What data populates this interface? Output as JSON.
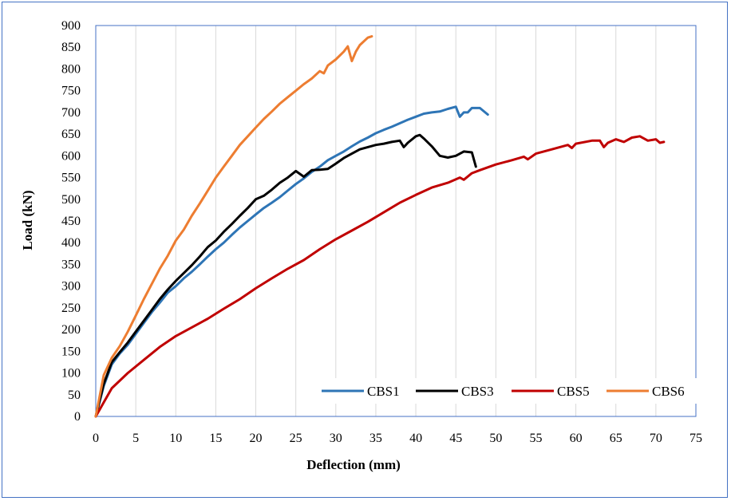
{
  "chart_data": {
    "type": "line",
    "title": "",
    "xlabel": "Deflection (mm)",
    "ylabel": "Load (kN)",
    "xlim": [
      0,
      75
    ],
    "ylim": [
      0,
      900
    ],
    "xticks": [
      0,
      5,
      10,
      15,
      20,
      25,
      30,
      35,
      40,
      45,
      50,
      55,
      60,
      65,
      70,
      75
    ],
    "yticks": [
      0,
      50,
      100,
      150,
      200,
      250,
      300,
      350,
      400,
      450,
      500,
      550,
      600,
      650,
      700,
      750,
      800,
      850,
      900
    ],
    "grid": "vertical",
    "legend_position": "bottom-right",
    "series": [
      {
        "name": "CBS1",
        "color": "#2E75B6",
        "points": [
          [
            0,
            0
          ],
          [
            1,
            70
          ],
          [
            2,
            120
          ],
          [
            3,
            145
          ],
          [
            4,
            165
          ],
          [
            5,
            190
          ],
          [
            6,
            215
          ],
          [
            7,
            240
          ],
          [
            8,
            262
          ],
          [
            9,
            285
          ],
          [
            10,
            300
          ],
          [
            11,
            318
          ],
          [
            12,
            333
          ],
          [
            13,
            350
          ],
          [
            14,
            368
          ],
          [
            15,
            385
          ],
          [
            16,
            400
          ],
          [
            17,
            418
          ],
          [
            18,
            435
          ],
          [
            19,
            450
          ],
          [
            20,
            465
          ],
          [
            21,
            480
          ],
          [
            22,
            492
          ],
          [
            23,
            505
          ],
          [
            24,
            520
          ],
          [
            25,
            535
          ],
          [
            26,
            548
          ],
          [
            27,
            563
          ],
          [
            28,
            575
          ],
          [
            29,
            590
          ],
          [
            30,
            600
          ],
          [
            31,
            610
          ],
          [
            32,
            622
          ],
          [
            33,
            633
          ],
          [
            34,
            642
          ],
          [
            35,
            652
          ],
          [
            36,
            660
          ],
          [
            37,
            667
          ],
          [
            38,
            675
          ],
          [
            39,
            683
          ],
          [
            40,
            690
          ],
          [
            41,
            697
          ],
          [
            42,
            700
          ],
          [
            43,
            702
          ],
          [
            44,
            708
          ],
          [
            45,
            713
          ],
          [
            45.5,
            690
          ],
          [
            46,
            700
          ],
          [
            46.5,
            700
          ],
          [
            47,
            710
          ],
          [
            48,
            710
          ],
          [
            49,
            695
          ]
        ]
      },
      {
        "name": "CBS3",
        "color": "#000000",
        "points": [
          [
            0,
            0
          ],
          [
            1,
            75
          ],
          [
            2,
            125
          ],
          [
            3,
            148
          ],
          [
            4,
            170
          ],
          [
            5,
            195
          ],
          [
            6,
            220
          ],
          [
            7,
            245
          ],
          [
            8,
            270
          ],
          [
            9,
            292
          ],
          [
            10,
            312
          ],
          [
            11,
            330
          ],
          [
            12,
            348
          ],
          [
            13,
            368
          ],
          [
            14,
            390
          ],
          [
            15,
            405
          ],
          [
            16,
            425
          ],
          [
            17,
            443
          ],
          [
            18,
            462
          ],
          [
            19,
            480
          ],
          [
            20,
            500
          ],
          [
            21,
            508
          ],
          [
            22,
            522
          ],
          [
            23,
            538
          ],
          [
            24,
            550
          ],
          [
            25,
            565
          ],
          [
            26,
            552
          ],
          [
            27,
            567
          ],
          [
            28,
            568
          ],
          [
            29,
            570
          ],
          [
            30,
            582
          ],
          [
            31,
            595
          ],
          [
            32,
            605
          ],
          [
            33,
            615
          ],
          [
            34,
            620
          ],
          [
            35,
            625
          ],
          [
            36,
            628
          ],
          [
            37,
            632
          ],
          [
            38,
            635
          ],
          [
            38.5,
            620
          ],
          [
            39,
            630
          ],
          [
            40,
            645
          ],
          [
            40.5,
            648
          ],
          [
            41,
            640
          ],
          [
            42,
            622
          ],
          [
            43,
            600
          ],
          [
            44,
            596
          ],
          [
            45,
            600
          ],
          [
            46,
            610
          ],
          [
            47,
            608
          ],
          [
            47.5,
            575
          ]
        ]
      },
      {
        "name": "CBS5",
        "color": "#C00000",
        "points": [
          [
            0,
            0
          ],
          [
            2,
            65
          ],
          [
            4,
            100
          ],
          [
            6,
            130
          ],
          [
            8,
            160
          ],
          [
            10,
            185
          ],
          [
            12,
            205
          ],
          [
            14,
            225
          ],
          [
            16,
            248
          ],
          [
            18,
            270
          ],
          [
            20,
            295
          ],
          [
            22,
            318
          ],
          [
            24,
            340
          ],
          [
            26,
            360
          ],
          [
            28,
            385
          ],
          [
            30,
            408
          ],
          [
            32,
            428
          ],
          [
            34,
            448
          ],
          [
            36,
            470
          ],
          [
            38,
            492
          ],
          [
            40,
            510
          ],
          [
            42,
            527
          ],
          [
            44,
            538
          ],
          [
            45.5,
            550
          ],
          [
            46,
            545
          ],
          [
            47,
            560
          ],
          [
            48,
            567
          ],
          [
            50,
            580
          ],
          [
            52,
            590
          ],
          [
            53.5,
            598
          ],
          [
            54,
            592
          ],
          [
            55,
            605
          ],
          [
            57,
            615
          ],
          [
            59,
            625
          ],
          [
            59.5,
            618
          ],
          [
            60,
            628
          ],
          [
            62,
            635
          ],
          [
            63,
            635
          ],
          [
            63.5,
            620
          ],
          [
            64,
            630
          ],
          [
            65,
            638
          ],
          [
            66,
            632
          ],
          [
            67,
            642
          ],
          [
            68,
            645
          ],
          [
            69,
            635
          ],
          [
            70,
            638
          ],
          [
            70.5,
            630
          ],
          [
            71,
            632
          ]
        ]
      },
      {
        "name": "CBS6",
        "color": "#ED7D31",
        "points": [
          [
            0,
            0
          ],
          [
            1,
            95
          ],
          [
            2,
            135
          ],
          [
            3,
            162
          ],
          [
            4,
            195
          ],
          [
            5,
            232
          ],
          [
            6,
            270
          ],
          [
            7,
            305
          ],
          [
            8,
            340
          ],
          [
            9,
            370
          ],
          [
            10,
            405
          ],
          [
            11,
            430
          ],
          [
            12,
            462
          ],
          [
            13,
            490
          ],
          [
            14,
            520
          ],
          [
            15,
            550
          ],
          [
            16,
            575
          ],
          [
            17,
            600
          ],
          [
            18,
            625
          ],
          [
            19,
            645
          ],
          [
            20,
            665
          ],
          [
            21,
            685
          ],
          [
            22,
            702
          ],
          [
            23,
            720
          ],
          [
            24,
            735
          ],
          [
            25,
            750
          ],
          [
            26,
            765
          ],
          [
            27,
            778
          ],
          [
            28,
            795
          ],
          [
            28.5,
            790
          ],
          [
            29,
            808
          ],
          [
            30,
            822
          ],
          [
            31,
            840
          ],
          [
            31.5,
            852
          ],
          [
            32,
            818
          ],
          [
            32.5,
            840
          ],
          [
            33,
            855
          ],
          [
            34,
            872
          ],
          [
            34.5,
            875
          ]
        ]
      }
    ]
  }
}
